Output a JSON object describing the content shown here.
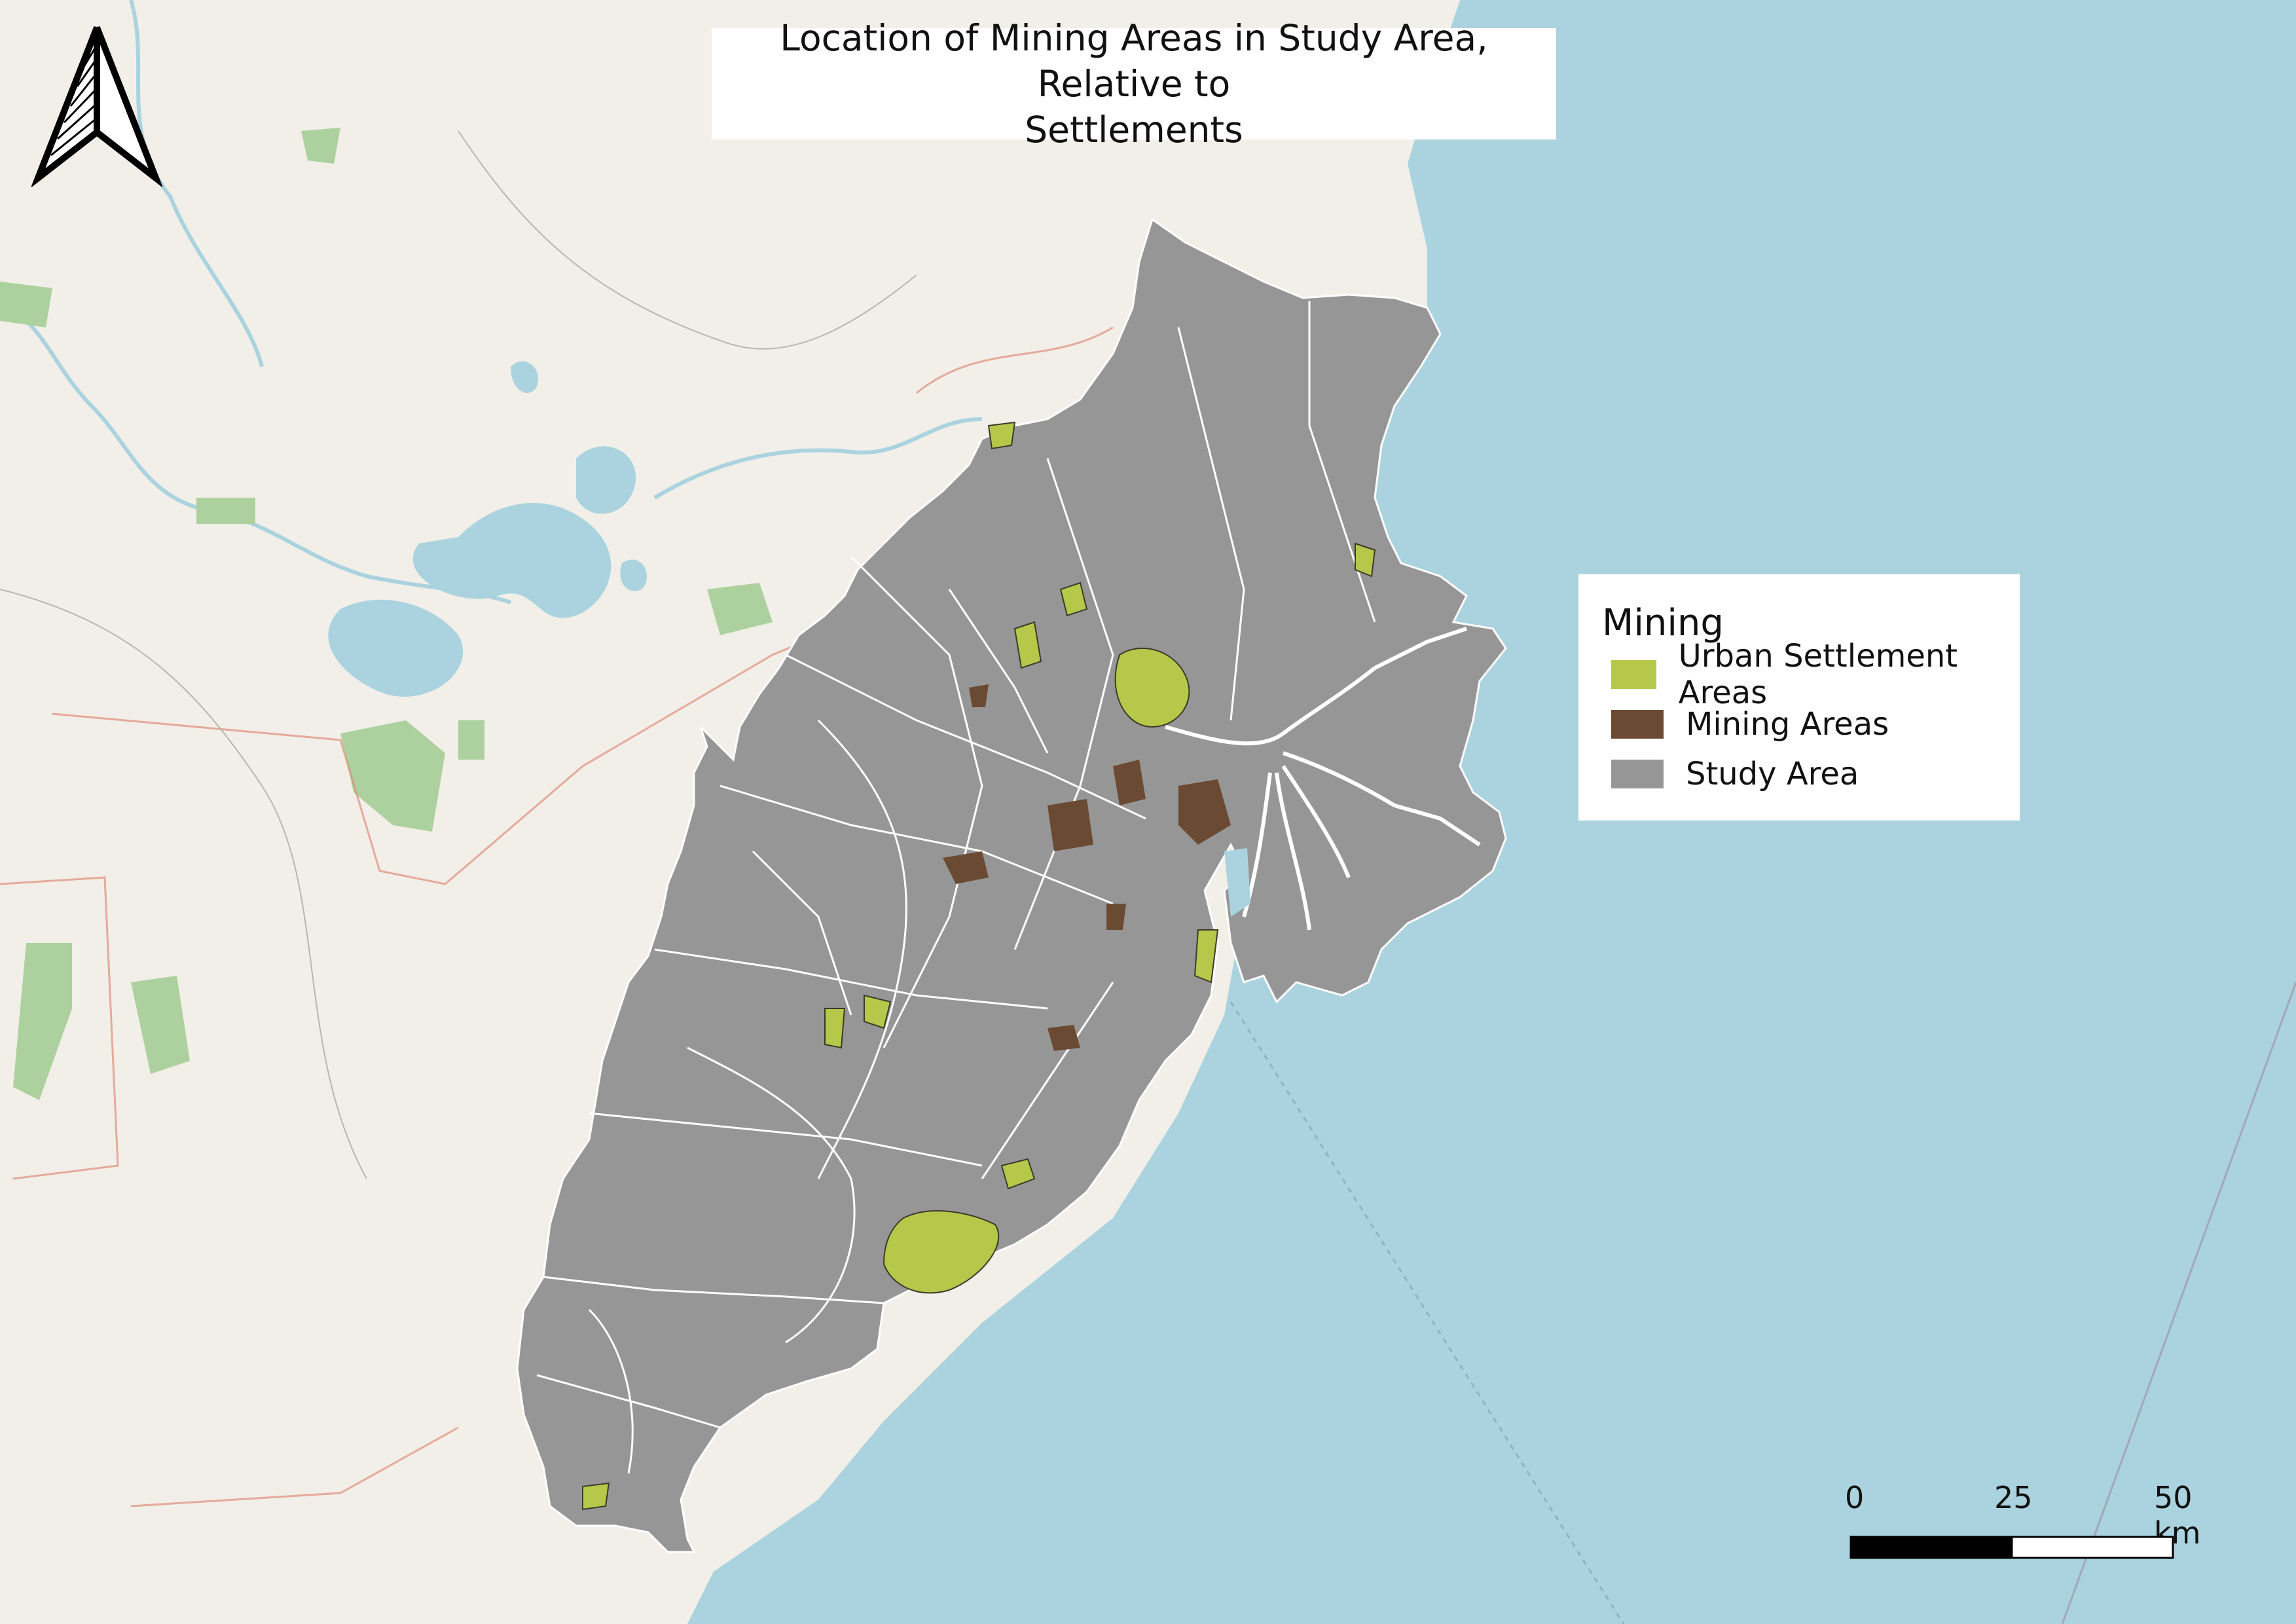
{
  "title": {
    "line1": "Location of Mining Areas in Study Area, Relative to",
    "line2": "Settlements"
  },
  "legend": {
    "title": "Mining",
    "items": [
      {
        "label": "Urban Settlement Areas",
        "color": "#b5c84a"
      },
      {
        "label": "Mining Areas",
        "color": "#6b4a33"
      },
      {
        "label": "Study Area",
        "color": "#969696"
      }
    ]
  },
  "scalebar": {
    "labels": [
      "0",
      "25",
      "50 km"
    ]
  },
  "colors": {
    "sea": "#aad3df",
    "land": "#f1efe8",
    "study_area": "#969696",
    "settlement": "#b5c84a",
    "mining": "#6b4a33",
    "water": "#aad3df",
    "forest": "#add19e"
  },
  "north_arrow": {
    "icon": "north-arrow-icon"
  }
}
